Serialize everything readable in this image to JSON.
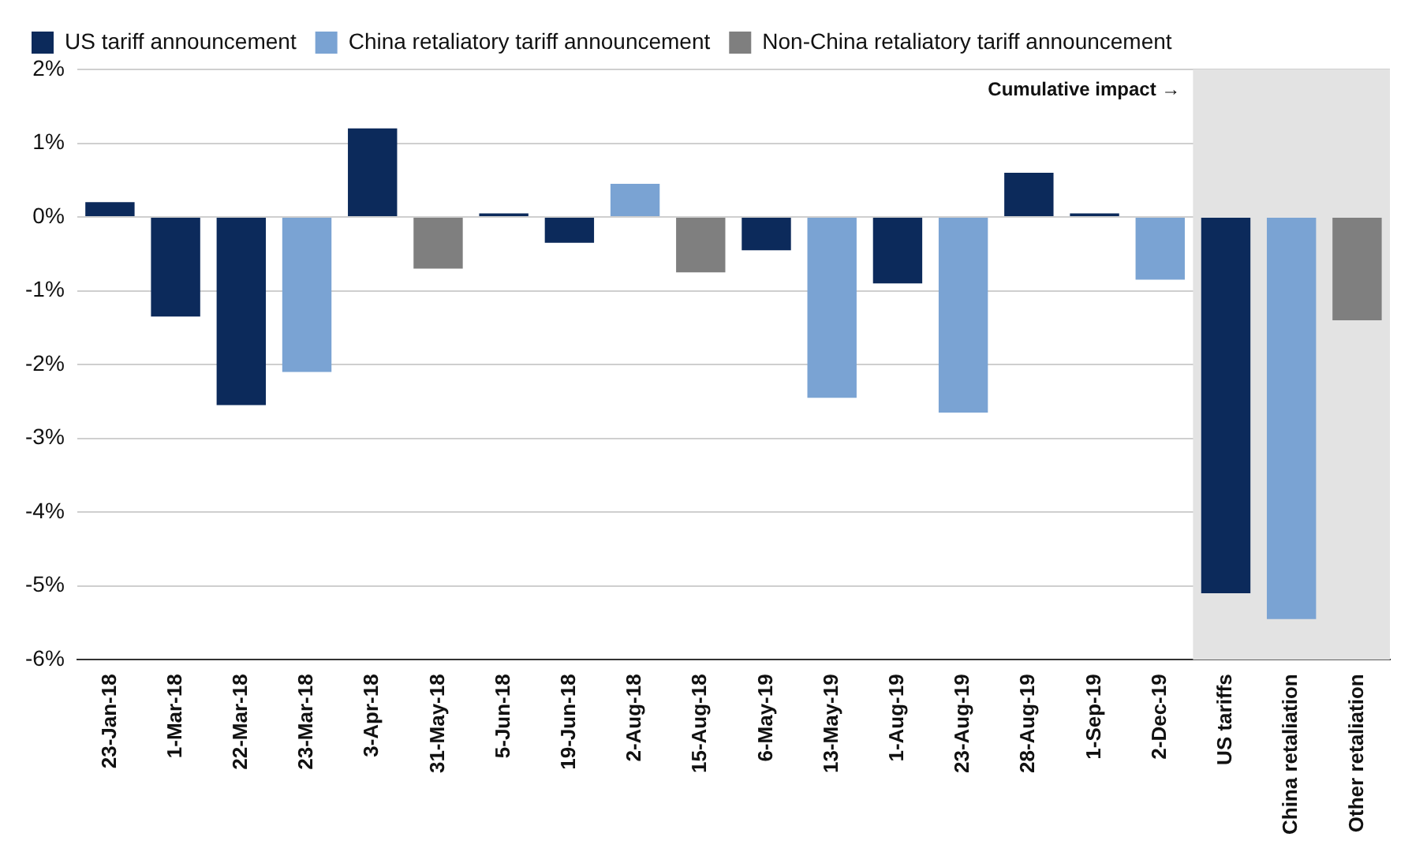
{
  "chart_data": {
    "type": "bar",
    "categories": [
      "23-Jan-18",
      "1-Mar-18",
      "22-Mar-18",
      "23-Mar-18",
      "3-Apr-18",
      "31-May-18",
      "5-Jun-18",
      "19-Jun-18",
      "2-Aug-18",
      "15-Aug-18",
      "6-May-19",
      "13-May-19",
      "1-Aug-19",
      "23-Aug-19",
      "28-Aug-19",
      "1-Sep-19",
      "2-Dec-19",
      "US tariffs",
      "China retaliation",
      "Other retaliation"
    ],
    "series": [
      {
        "name": "US tariff announcement",
        "color": "#0c2a5b",
        "values": [
          0.2,
          -1.35,
          -2.55,
          null,
          1.2,
          null,
          0.05,
          -0.35,
          null,
          null,
          -0.45,
          null,
          -0.9,
          null,
          0.6,
          0.05,
          null,
          -5.1,
          null,
          null
        ]
      },
      {
        "name": "China retaliatory tariff announcement",
        "color": "#7aa3d3",
        "values": [
          null,
          null,
          null,
          -2.1,
          null,
          null,
          null,
          null,
          0.45,
          null,
          null,
          -2.45,
          null,
          -2.65,
          null,
          null,
          -0.85,
          null,
          -5.45,
          null
        ]
      },
      {
        "name": "Non-China retaliatory tariff announcement",
        "color": "#7f7f7f",
        "values": [
          null,
          null,
          null,
          null,
          null,
          -0.7,
          null,
          null,
          null,
          -0.75,
          null,
          null,
          null,
          null,
          null,
          null,
          null,
          null,
          null,
          -1.4
        ]
      }
    ],
    "ylim": [
      -6,
      2
    ],
    "yticks": [
      {
        "value": -6,
        "label": "-6%"
      },
      {
        "value": -5,
        "label": "-5%"
      },
      {
        "value": -4,
        "label": "-4%"
      },
      {
        "value": -3,
        "label": "-3%"
      },
      {
        "value": -2,
        "label": "-2%"
      },
      {
        "value": -1,
        "label": "-1%"
      },
      {
        "value": 0,
        "label": "0%"
      },
      {
        "value": 1,
        "label": "1%"
      },
      {
        "value": 2,
        "label": "2%"
      }
    ],
    "grid": "y",
    "legend": "top left",
    "bands": [
      {
        "axis": "x",
        "from": "US tariffs",
        "to": "Other retaliation",
        "label": "Cumulative impact →",
        "color": "#e3e3e3"
      }
    ]
  }
}
